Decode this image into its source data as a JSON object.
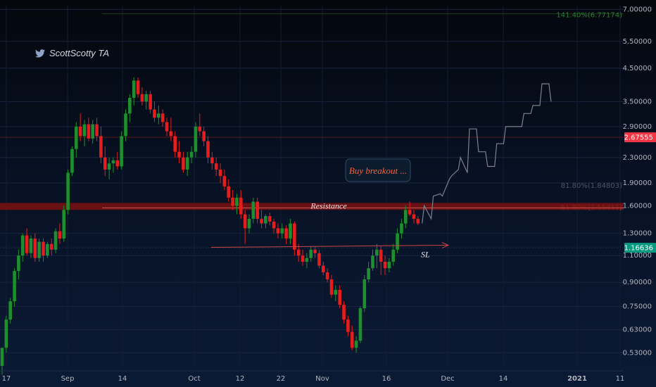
{
  "watermark": {
    "author": "ScottScotty TA",
    "icon": "twitter-bird-icon"
  },
  "chart_data": {
    "type": "candlestick",
    "y_scale": "log",
    "ylim": [
      0.48,
      7.2
    ],
    "x_ticks": [
      "17",
      "Sep",
      "14",
      "Oct",
      "12",
      "22",
      "Nov",
      "16",
      "Dec",
      "14",
      "2021",
      "11"
    ],
    "y_ticks": [
      "7.00000",
      "5.50000",
      "4.50000",
      "3.50000",
      "2.90000",
      "2.30000",
      "1.90000",
      "1.60000",
      "1.30000",
      "1.10000",
      "0.90000",
      "0.75000",
      "0.63000",
      "0.53000"
    ],
    "price_badges": [
      {
        "label": "2.67555",
        "value": 2.67555,
        "color": "#f23645"
      },
      {
        "label": "1.16636",
        "value": 1.16636,
        "color": "#089981"
      }
    ],
    "fib_levels": [
      {
        "label": "141.40%(6.77174)",
        "value": 6.77174,
        "color": "#2e7d32"
      },
      {
        "label": "61.80%(1.55411)",
        "value": 1.55411,
        "color": "#e65050"
      },
      {
        "label": "81.80%(1.84803)",
        "value": 1.84803,
        "color": "#4a5568"
      }
    ],
    "annotations": {
      "resistance": "Resistance",
      "buy": "Buy breakout ...",
      "stop_loss": "SL"
    },
    "levels": {
      "resistance": 1.6,
      "stop_loss": 1.17
    },
    "candles": [
      [
        0.48,
        0.55,
        0.45,
        0.55
      ],
      [
        0.55,
        0.7,
        0.53,
        0.68
      ],
      [
        0.68,
        0.8,
        0.66,
        0.78
      ],
      [
        0.78,
        1.0,
        0.75,
        0.98
      ],
      [
        0.98,
        1.15,
        0.92,
        1.1
      ],
      [
        1.1,
        1.3,
        1.05,
        1.28
      ],
      [
        1.28,
        1.35,
        1.1,
        1.12
      ],
      [
        1.12,
        1.28,
        1.08,
        1.25
      ],
      [
        1.25,
        1.3,
        1.05,
        1.08
      ],
      [
        1.08,
        1.25,
        1.05,
        1.22
      ],
      [
        1.22,
        1.25,
        1.05,
        1.1
      ],
      [
        1.1,
        1.22,
        1.08,
        1.2
      ],
      [
        1.2,
        1.25,
        1.1,
        1.15
      ],
      [
        1.15,
        1.35,
        1.12,
        1.32
      ],
      [
        1.32,
        1.4,
        1.2,
        1.25
      ],
      [
        1.25,
        1.6,
        1.22,
        1.55
      ],
      [
        1.55,
        2.1,
        1.5,
        2.05
      ],
      [
        2.05,
        2.5,
        2.0,
        2.45
      ],
      [
        2.45,
        3.0,
        2.3,
        2.9
      ],
      [
        2.9,
        3.2,
        2.6,
        2.7
      ],
      [
        2.7,
        3.05,
        2.5,
        2.95
      ],
      [
        2.95,
        3.1,
        2.6,
        2.65
      ],
      [
        2.65,
        3.05,
        2.55,
        2.95
      ],
      [
        2.95,
        3.1,
        2.6,
        2.7
      ],
      [
        2.7,
        2.9,
        2.2,
        2.3
      ],
      [
        2.3,
        2.5,
        2.0,
        2.1
      ],
      [
        2.1,
        2.3,
        1.95,
        2.2
      ],
      [
        2.2,
        2.3,
        2.05,
        2.25
      ],
      [
        2.25,
        2.4,
        2.1,
        2.15
      ],
      [
        2.15,
        2.8,
        2.1,
        2.7
      ],
      [
        2.7,
        3.3,
        2.6,
        3.2
      ],
      [
        3.2,
        3.7,
        3.0,
        3.6
      ],
      [
        3.6,
        4.2,
        3.4,
        4.1
      ],
      [
        4.1,
        4.2,
        3.6,
        3.7
      ],
      [
        3.7,
        3.9,
        3.4,
        3.5
      ],
      [
        3.5,
        3.8,
        3.3,
        3.7
      ],
      [
        3.7,
        3.8,
        3.2,
        3.3
      ],
      [
        3.3,
        3.5,
        3.0,
        3.1
      ],
      [
        3.1,
        3.4,
        2.95,
        3.2
      ],
      [
        3.2,
        3.3,
        2.9,
        3.0
      ],
      [
        3.0,
        3.1,
        2.7,
        2.8
      ],
      [
        2.8,
        3.1,
        2.6,
        2.7
      ],
      [
        2.7,
        2.8,
        2.3,
        2.4
      ],
      [
        2.4,
        2.6,
        2.2,
        2.3
      ],
      [
        2.3,
        2.4,
        2.05,
        2.1
      ],
      [
        2.1,
        2.4,
        2.0,
        2.3
      ],
      [
        2.3,
        2.5,
        2.2,
        2.4
      ],
      [
        2.4,
        3.0,
        2.3,
        2.9
      ],
      [
        2.9,
        3.2,
        2.7,
        2.8
      ],
      [
        2.8,
        2.9,
        2.5,
        2.6
      ],
      [
        2.6,
        2.7,
        2.2,
        2.3
      ],
      [
        2.3,
        2.4,
        2.1,
        2.2
      ],
      [
        2.2,
        2.3,
        2.0,
        2.1
      ],
      [
        2.1,
        2.2,
        1.9,
        2.0
      ],
      [
        2.0,
        2.1,
        1.8,
        1.85
      ],
      [
        1.85,
        1.95,
        1.65,
        1.7
      ],
      [
        1.7,
        1.8,
        1.55,
        1.6
      ],
      [
        1.6,
        1.75,
        1.5,
        1.7
      ],
      [
        1.7,
        1.8,
        1.45,
        1.5
      ],
      [
        1.5,
        1.55,
        1.2,
        1.35
      ],
      [
        1.35,
        1.5,
        1.3,
        1.45
      ],
      [
        1.45,
        1.7,
        1.4,
        1.65
      ],
      [
        1.65,
        1.7,
        1.4,
        1.45
      ],
      [
        1.45,
        1.55,
        1.35,
        1.4
      ],
      [
        1.4,
        1.5,
        1.35,
        1.48
      ],
      [
        1.48,
        1.52,
        1.38,
        1.42
      ],
      [
        1.42,
        1.45,
        1.3,
        1.35
      ],
      [
        1.35,
        1.4,
        1.25,
        1.3
      ],
      [
        1.3,
        1.4,
        1.25,
        1.35
      ],
      [
        1.35,
        1.38,
        1.2,
        1.25
      ],
      [
        1.25,
        1.45,
        1.2,
        1.4
      ],
      [
        1.4,
        1.42,
        1.1,
        1.15
      ],
      [
        1.15,
        1.2,
        1.05,
        1.1
      ],
      [
        1.1,
        1.15,
        1.02,
        1.05
      ],
      [
        1.05,
        1.12,
        1.0,
        1.08
      ],
      [
        1.08,
        1.18,
        1.05,
        1.15
      ],
      [
        1.15,
        1.18,
        1.08,
        1.12
      ],
      [
        1.12,
        1.15,
        1.0,
        1.02
      ],
      [
        1.02,
        1.05,
        0.95,
        0.97
      ],
      [
        0.97,
        1.0,
        0.9,
        0.92
      ],
      [
        0.92,
        0.95,
        0.8,
        0.82
      ],
      [
        0.82,
        0.88,
        0.78,
        0.85
      ],
      [
        0.85,
        0.88,
        0.74,
        0.76
      ],
      [
        0.76,
        0.78,
        0.66,
        0.68
      ],
      [
        0.68,
        0.7,
        0.6,
        0.62
      ],
      [
        0.62,
        0.65,
        0.54,
        0.55
      ],
      [
        0.55,
        0.6,
        0.53,
        0.58
      ],
      [
        0.58,
        0.75,
        0.57,
        0.74
      ],
      [
        0.74,
        0.95,
        0.72,
        0.92
      ],
      [
        0.92,
        1.05,
        0.9,
        1.0
      ],
      [
        1.0,
        1.15,
        0.98,
        1.1
      ],
      [
        1.1,
        1.2,
        1.0,
        1.15
      ],
      [
        1.15,
        1.18,
        0.95,
        1.05
      ],
      [
        1.05,
        1.1,
        0.95,
        1.0
      ],
      [
        1.0,
        1.08,
        0.97,
        1.05
      ],
      [
        1.05,
        1.2,
        1.02,
        1.15
      ],
      [
        1.15,
        1.35,
        1.12,
        1.3
      ],
      [
        1.3,
        1.45,
        1.25,
        1.4
      ],
      [
        1.4,
        1.6,
        1.35,
        1.55
      ],
      [
        1.55,
        1.65,
        1.48,
        1.5
      ],
      [
        1.5,
        1.55,
        1.4,
        1.45
      ],
      [
        1.45,
        1.48,
        1.38,
        1.4
      ]
    ],
    "projection": [
      [
        1.4,
        1.6
      ],
      [
        1.45,
        1.72
      ],
      [
        1.75,
        1.72
      ],
      [
        1.95,
        2.0
      ],
      [
        2.1,
        2.3
      ],
      [
        2.05,
        2.85
      ],
      [
        2.85,
        2.4
      ],
      [
        2.4,
        2.15
      ],
      [
        2.15,
        2.55
      ],
      [
        2.55,
        2.9
      ],
      [
        2.9,
        2.9
      ],
      [
        2.9,
        3.2
      ],
      [
        3.2,
        3.4
      ],
      [
        3.4,
        4.0
      ],
      [
        4.0,
        3.5
      ]
    ]
  }
}
